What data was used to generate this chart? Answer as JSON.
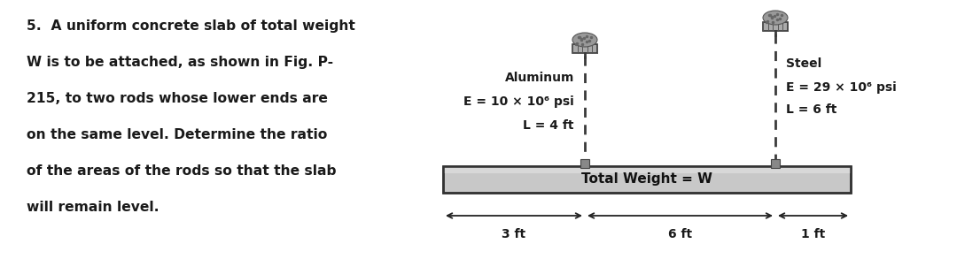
{
  "bg_color": "#ffffff",
  "text_color": "#1a1a1a",
  "problem_text_lines": [
    "5.  A uniform concrete slab of total weight",
    "W is to be attached, as shown in Fig. P-",
    "215, to two rods whose lower ends are",
    "on the same level. Determine the ratio",
    "of the areas of the rods so that the slab",
    "will remain level."
  ],
  "aluminum_label": [
    "Aluminum",
    "E = 10 × 10⁶ psi",
    "L = 4 ft"
  ],
  "steel_label": [
    "Steel",
    "E = 29 × 10⁶ psi",
    "L = 6 ft"
  ],
  "slab_label": "Total Weight = W",
  "dim_labels": [
    "3 ft",
    "6 ft",
    "1 ft"
  ],
  "fig_width": 10.8,
  "fig_height": 2.93,
  "dpi": 100,
  "slab_color": "#c8c8c8",
  "rod_color": "#3a3a3a",
  "cap_color": "#aaaaaa",
  "pin_color": "#888888"
}
